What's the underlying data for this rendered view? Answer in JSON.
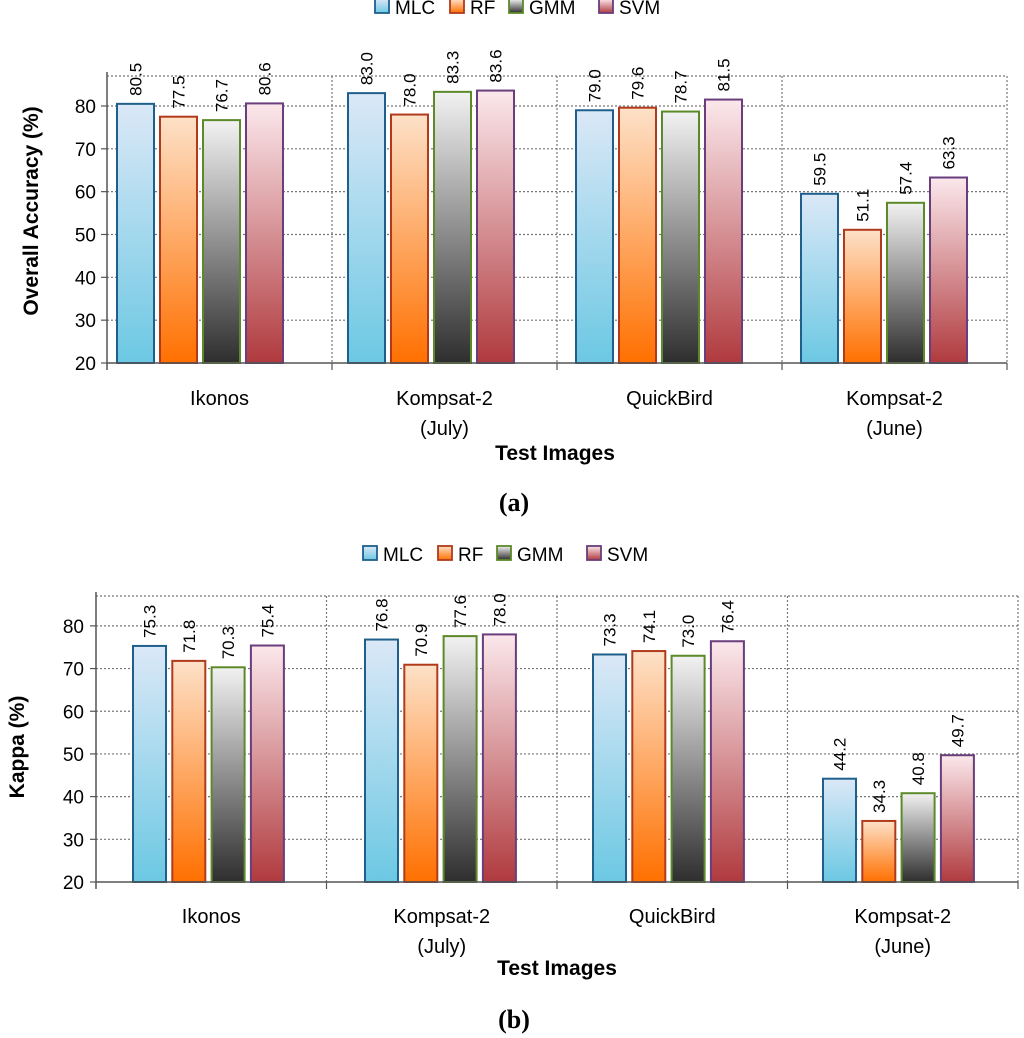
{
  "chart_data": [
    {
      "type": "bar",
      "panel_label": "(a)",
      "title": "",
      "xlabel": "Test Images",
      "ylabel": "Overall Accuracy (%)",
      "ylim": [
        20,
        87
      ],
      "yticks": [
        20,
        30,
        40,
        50,
        60,
        70,
        80
      ],
      "grid": true,
      "legend_position": "top",
      "categories": [
        [
          "Ikonos"
        ],
        [
          "Kompsat-2",
          "(July)"
        ],
        [
          "QuickBird"
        ],
        [
          "Kompsat-2",
          "(June)"
        ]
      ],
      "series": [
        {
          "name": "MLC",
          "values": [
            80.5,
            83.0,
            79.0,
            59.5
          ],
          "labels": [
            "80.5",
            "83.0",
            "79.0",
            "59.5"
          ]
        },
        {
          "name": "RF",
          "values": [
            77.5,
            78.0,
            79.6,
            51.1
          ],
          "labels": [
            "77.5",
            "78.0",
            "79.6",
            "51.1"
          ]
        },
        {
          "name": "GMM",
          "values": [
            76.7,
            83.3,
            78.7,
            57.4
          ],
          "labels": [
            "76.7",
            "83.3",
            "78.7",
            "57.4"
          ]
        },
        {
          "name": "SVM",
          "values": [
            80.6,
            83.6,
            81.5,
            63.3
          ],
          "labels": [
            "80.6",
            "83.6",
            "81.5",
            "63.3"
          ]
        }
      ]
    },
    {
      "type": "bar",
      "panel_label": "(b)",
      "title": "",
      "xlabel": "Test Images",
      "ylabel": "Kappa (%)",
      "ylim": [
        20,
        87
      ],
      "yticks": [
        20,
        30,
        40,
        50,
        60,
        70,
        80
      ],
      "grid": true,
      "legend_position": "top",
      "categories": [
        [
          "Ikonos"
        ],
        [
          "Kompsat-2",
          "(July)"
        ],
        [
          "QuickBird"
        ],
        [
          "Kompsat-2",
          "(June)"
        ]
      ],
      "series": [
        {
          "name": "MLC",
          "values": [
            75.3,
            76.8,
            73.3,
            44.2
          ],
          "labels": [
            "75.3",
            "76.8",
            "73.3",
            "44.2"
          ]
        },
        {
          "name": "RF",
          "values": [
            71.8,
            70.9,
            74.1,
            34.3
          ],
          "labels": [
            "71.8",
            "70.9",
            "74.1",
            "34.3"
          ]
        },
        {
          "name": "GMM",
          "values": [
            70.3,
            77.6,
            73.0,
            40.8
          ],
          "labels": [
            "70.3",
            "77.6",
            "73.0",
            "40.8"
          ]
        },
        {
          "name": "SVM",
          "values": [
            75.4,
            78.0,
            76.4,
            49.7
          ],
          "labels": [
            "75.4",
            "78.0",
            "76.4",
            "49.7"
          ]
        }
      ]
    }
  ],
  "colors": {
    "MLC": {
      "light": "#dbe8f7",
      "dark": "#6cc8e3",
      "stroke": "#1f5f8b"
    },
    "RF": {
      "light": "#fde1c8",
      "dark": "#ff7000",
      "stroke": "#b03a1c"
    },
    "GMM": {
      "light": "#f2f2f2",
      "dark": "#2e2e2e",
      "stroke": "#5c8a28"
    },
    "SVM": {
      "light": "#fbe8ec",
      "dark": "#b03a3e",
      "stroke": "#6a3d7c"
    }
  }
}
